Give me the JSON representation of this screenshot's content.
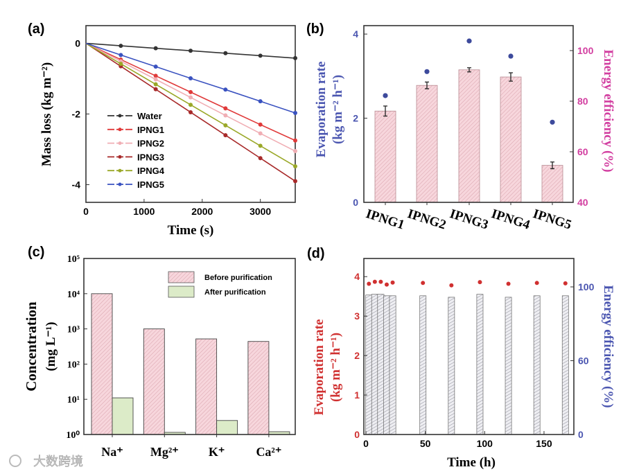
{
  "watermark": "大数跨境",
  "chart_data": [
    {
      "panel": "(a)",
      "type": "line",
      "xlabel": "Time (s)",
      "ylabel": "Mass loss (kg m⁻²)",
      "xlim": [
        0,
        3600
      ],
      "ylim": [
        -4.5,
        0.5
      ],
      "xticks": [
        0,
        1000,
        2000,
        3000
      ],
      "yticks": [
        0,
        -2,
        -4
      ],
      "legend_position": "lower-left",
      "x": [
        0,
        600,
        1200,
        1800,
        2400,
        3000,
        3600
      ],
      "series": [
        {
          "name": "Water",
          "color": "#333333",
          "values": [
            0,
            -0.07,
            -0.14,
            -0.21,
            -0.28,
            -0.35,
            -0.42
          ]
        },
        {
          "name": "IPNG1",
          "color": "#e03a3a",
          "values": [
            0,
            -0.46,
            -0.92,
            -1.38,
            -1.84,
            -2.3,
            -2.75
          ]
        },
        {
          "name": "IPNG2",
          "color": "#f0aeb4",
          "values": [
            0,
            -0.51,
            -1.02,
            -1.53,
            -2.04,
            -2.55,
            -3.05
          ]
        },
        {
          "name": "IPNG3",
          "color": "#a82a2a",
          "values": [
            0,
            -0.65,
            -1.3,
            -1.95,
            -2.6,
            -3.25,
            -3.9
          ]
        },
        {
          "name": "IPNG4",
          "color": "#9aa828",
          "values": [
            0,
            -0.58,
            -1.16,
            -1.74,
            -2.32,
            -2.9,
            -3.48
          ]
        },
        {
          "name": "IPNG5",
          "color": "#3a52c0",
          "values": [
            0,
            -0.33,
            -0.66,
            -0.99,
            -1.31,
            -1.64,
            -1.97
          ]
        }
      ]
    },
    {
      "panel": "(b)",
      "type": "bar",
      "categories": [
        "IPNG1",
        "IPNG2",
        "IPNG3",
        "IPNG4",
        "IPNG5"
      ],
      "ylabel_left": [
        "Evaporation rate",
        "(kg m⁻² h⁻¹)"
      ],
      "ylabel_right": "Energy efficiency (%)",
      "ylim_left": [
        0,
        4.2
      ],
      "ylim_right": [
        40,
        100
      ],
      "yticks_left": [
        "0",
        "2",
        "4"
      ],
      "yticks_right": [
        "40",
        "60",
        "80",
        "100"
      ],
      "left_color": "#4a55b0",
      "right_color": "#d23ea0",
      "bars": {
        "name": "Evaporation rate",
        "values": [
          2.17,
          2.78,
          3.15,
          2.98,
          0.88
        ],
        "errors": [
          0.12,
          0.08,
          0.05,
          0.1,
          0.08
        ]
      },
      "points": {
        "name": "Energy efficiency",
        "values": [
          82.2,
          91.7,
          103.8,
          97.8,
          71.7
        ]
      }
    },
    {
      "panel": "(c)",
      "type": "bar",
      "scale": "log",
      "categories": [
        "Na⁺",
        "Mg²⁺",
        "K⁺",
        "Ca²⁺"
      ],
      "ylabel": [
        "Concentration",
        "(mg L⁻¹)"
      ],
      "ylim": [
        1,
        100000
      ],
      "yticks": [
        "10⁰",
        "10¹",
        "10²",
        "10³",
        "10⁴",
        "10⁵"
      ],
      "legend_position": "top-right",
      "series": [
        {
          "name": "Before purification",
          "color": "#f7d3d9",
          "values": [
            10000,
            1000,
            520,
            440
          ]
        },
        {
          "name": "After purification",
          "color": "#dcebc8",
          "values": [
            11,
            1.15,
            2.5,
            1.2
          ]
        }
      ]
    },
    {
      "panel": "(d)",
      "type": "bar",
      "xlabel": "Time (h)",
      "ylabel_left": [
        "Evaporation rate",
        "(kg m⁻² h⁻¹)"
      ],
      "ylabel_right": "Energy efficiency (%)",
      "xlim": [
        0,
        175
      ],
      "xticks": [
        "0",
        "50",
        "100",
        "150"
      ],
      "ylim_left": [
        0,
        4.46
      ],
      "ylim_right": [
        0,
        100
      ],
      "yticks_left": [
        "0",
        "1",
        "2",
        "3",
        "4"
      ],
      "yticks_right": [
        "0",
        "60",
        "100"
      ],
      "left_color": "#d03030",
      "right_color": "#4a55b0",
      "x": [
        2.5,
        7.5,
        12.5,
        17.5,
        22.5,
        48,
        72,
        96,
        120,
        144,
        168
      ],
      "bars": {
        "name": "Energy efficiency",
        "values": [
          94.5,
          95,
          95,
          94,
          94,
          94,
          93,
          95,
          93,
          94,
          94
        ]
      },
      "points": {
        "name": "Evaporation rate",
        "values": [
          3.82,
          3.87,
          3.87,
          3.8,
          3.85,
          3.84,
          3.78,
          3.86,
          3.82,
          3.84,
          3.83
        ]
      }
    }
  ]
}
